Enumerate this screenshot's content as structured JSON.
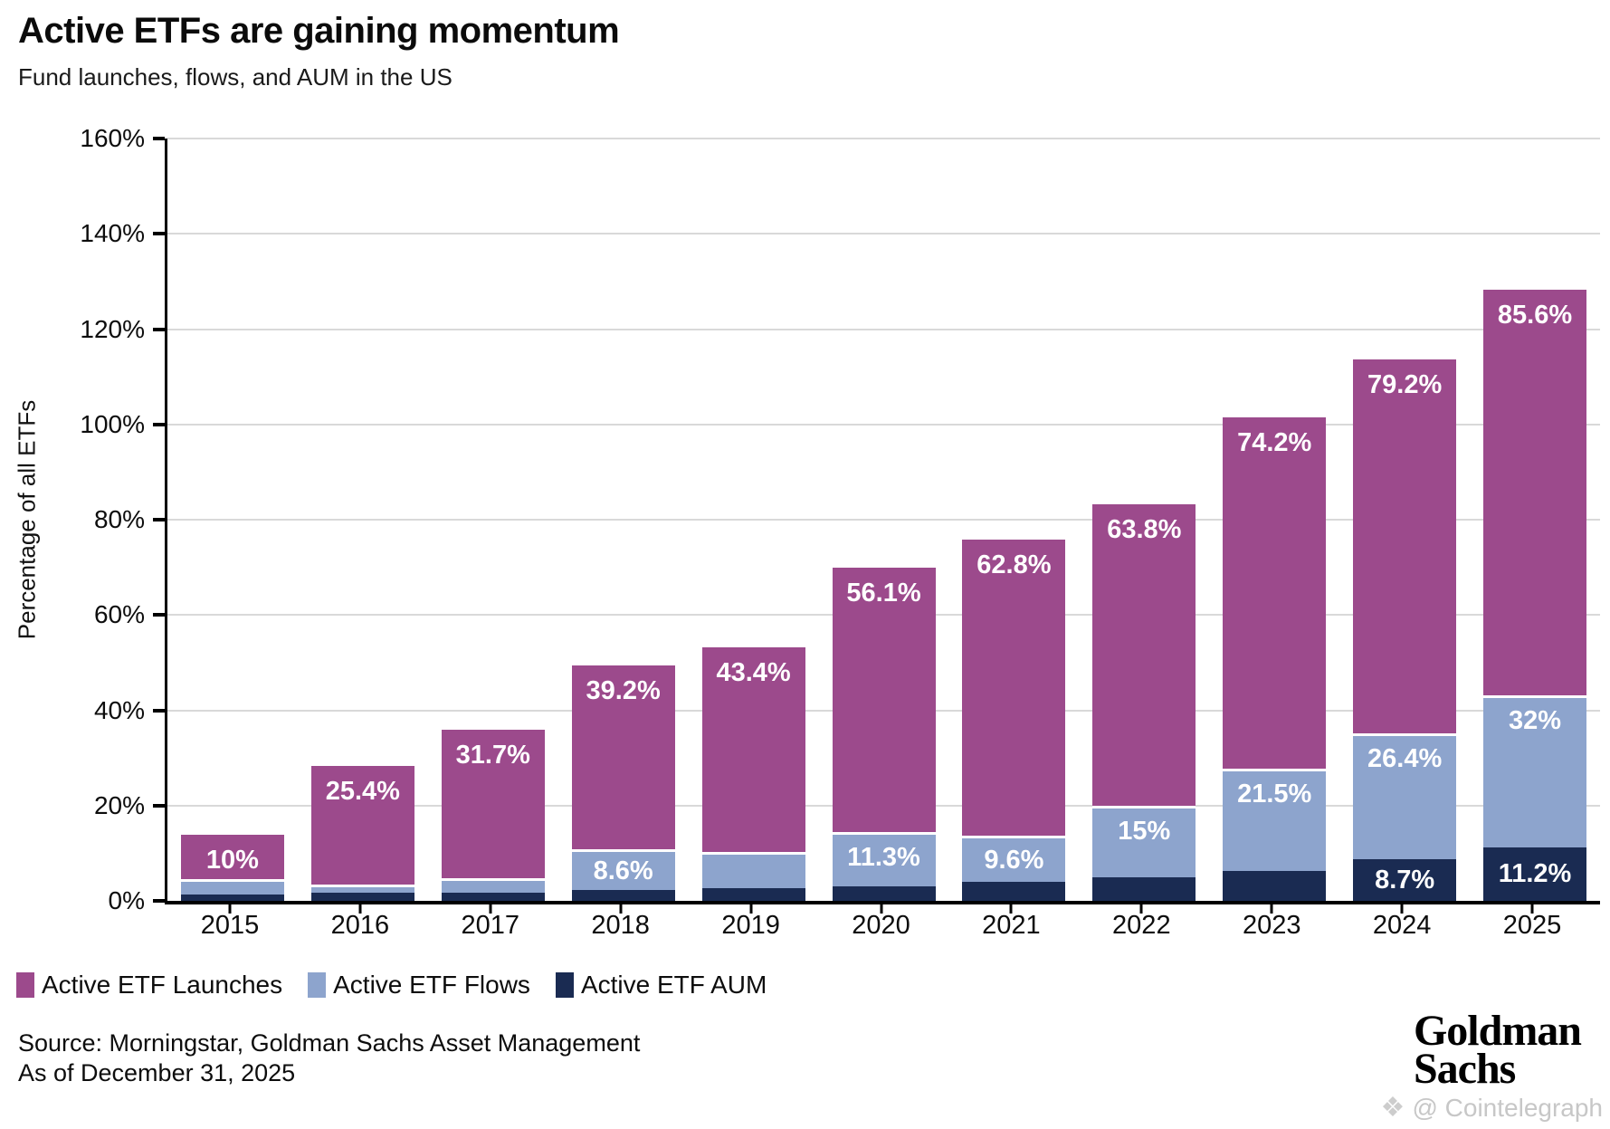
{
  "title": "Active ETFs are gaining momentum",
  "subtitle": "Fund launches, flows, and AUM in the US",
  "chart_data": {
    "type": "bar",
    "stacked": true,
    "title": "Active ETFs are gaining momentum",
    "subtitle": "Fund launches, flows, and AUM in the US",
    "xlabel": "",
    "ylabel": "Percentage of all ETFs",
    "ylim": [
      0,
      160
    ],
    "ytick_step": 20,
    "yticks": [
      "0%",
      "20%",
      "40%",
      "60%",
      "80%",
      "100%",
      "120%",
      "140%",
      "160%"
    ],
    "grid": true,
    "legend_position": "bottom",
    "stack_order_bottom_up": [
      "Active ETF AUM",
      "Active ETF Flows",
      "Active ETF Launches"
    ],
    "categories": [
      "2015",
      "2016",
      "2017",
      "2018",
      "2019",
      "2020",
      "2021",
      "2022",
      "2023",
      "2024",
      "2025"
    ],
    "series": [
      {
        "name": "Active ETF Launches",
        "color": "#9C4A8C",
        "values": [
          10,
          25.4,
          31.7,
          39.2,
          43.4,
          56.1,
          62.8,
          63.8,
          74.2,
          79.2,
          85.6
        ],
        "labels": [
          "10%",
          "25.4%",
          "31.7%",
          "39.2%",
          "43.4%",
          "56.1%",
          "62.8%",
          "63.8%",
          "74.2%",
          "79.2%",
          "85.6%"
        ]
      },
      {
        "name": "Active ETF Flows",
        "color": "#8DA4CD",
        "values": [
          3.1,
          1.7,
          2.9,
          8.6,
          7.7,
          11.3,
          9.6,
          15,
          21.5,
          26.4,
          32
        ],
        "labels": [
          "",
          "",
          "",
          "8.6%",
          "",
          "11.3%",
          "9.6%",
          "15%",
          "21.5%",
          "26.4%",
          "32%"
        ]
      },
      {
        "name": "Active ETF AUM",
        "color": "#1A2B52",
        "values": [
          1.4,
          1.7,
          1.8,
          2.2,
          2.6,
          3.1,
          4,
          5,
          6.3,
          8.7,
          11.2
        ],
        "labels": [
          "",
          "",
          "",
          "",
          "",
          "",
          "",
          "",
          "",
          "8.7%",
          "11.2%"
        ]
      }
    ]
  },
  "legend": {
    "items": [
      {
        "label": "Active ETF Launches",
        "color": "#9C4A8C"
      },
      {
        "label": "Active ETF Flows",
        "color": "#8DA4CD"
      },
      {
        "label": "Active ETF AUM",
        "color": "#1A2B52"
      }
    ]
  },
  "footer": {
    "source_line1": "Source: Morningstar, Goldman Sachs Asset Management",
    "source_line2": "As of December 31, 2025",
    "brand_line1": "Goldman",
    "brand_line2": "Sachs",
    "watermark_icon": "❖",
    "watermark_text": "@ Cointelegraph"
  }
}
